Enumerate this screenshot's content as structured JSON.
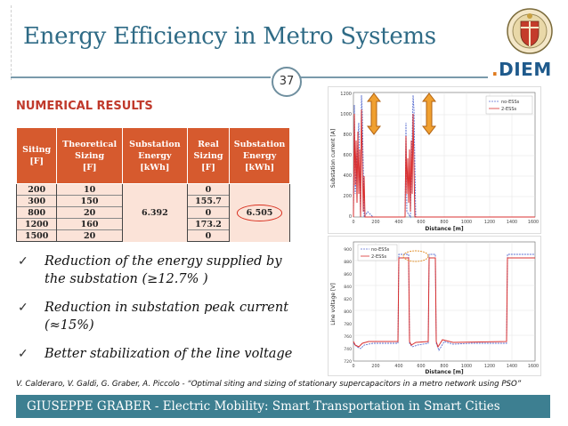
{
  "slide": {
    "title": "Energy Efficiency in Metro Systems",
    "page_number": "37",
    "logo_text": "DIEM",
    "section_heading": "NUMERICAL RESULTS"
  },
  "table": {
    "headers": [
      "Siting [F]",
      "Theoretical Sizing [F]",
      "Substation Energy [kWh]",
      "Real Sizing [F]",
      "Substation Energy [kWh]"
    ],
    "header_lines": [
      [
        "Siting",
        "[F]"
      ],
      [
        "Theoretical",
        "Sizing",
        "[F]"
      ],
      [
        "Substation",
        "Energy",
        "[kWh]"
      ],
      [
        "Real",
        "Sizing",
        "[F]"
      ],
      [
        "Substation",
        "Energy",
        "[kWh]"
      ]
    ],
    "siting": [
      "200",
      "300",
      "800",
      "1200",
      "1500"
    ],
    "theoretical_sizing": [
      "10",
      "150",
      "20",
      "160",
      "20"
    ],
    "substation_energy_theoretical": "6.392",
    "real_sizing": [
      "0",
      "155.7",
      "0",
      "173.2",
      "0"
    ],
    "substation_energy_real": "6.505"
  },
  "bullets": [
    "Reduction of the energy supplied by the substation (≥12.7% )",
    "Reduction in substation peak current (≈15%)",
    "Better stabilization of the line voltage"
  ],
  "plots": {
    "top": {
      "ylabel": "Substation current [A]",
      "xlabel": "Distance [m]",
      "legend": [
        "no-ESSs",
        "2-ESSs"
      ],
      "yticks": [
        "0",
        "200",
        "400",
        "600",
        "800",
        "1000",
        "1200"
      ],
      "xticks": [
        "0",
        "200",
        "400",
        "600",
        "800",
        "1000",
        "1200",
        "1400",
        "1600"
      ]
    },
    "bottom": {
      "ylabel": "Line voltage [V]",
      "xlabel": "Distance [m]",
      "legend": [
        "no-ESSs",
        "2-ESSs"
      ],
      "yticks": [
        "720",
        "740",
        "760",
        "780",
        "800",
        "820",
        "840",
        "860",
        "880",
        "900"
      ],
      "xticks": [
        "0",
        "200",
        "400",
        "600",
        "800",
        "1000",
        "1200",
        "1400",
        "1600"
      ]
    }
  },
  "reference": "V. Calderaro, V. Galdi, G. Graber, A. Piccolo - “Optimal siting and sizing of stationary supercapacitors in a metro network using PSO”",
  "footer": "GIUSEPPE GRABER - Electric Mobility: Smart Transportation in Smart Cities",
  "colors": {
    "title": "#2f6b86",
    "accent": "#d65a2e",
    "footer_bg": "#3d7f91",
    "series_no_ess": "#5b6fd0",
    "series_2_ess": "#d93030"
  }
}
